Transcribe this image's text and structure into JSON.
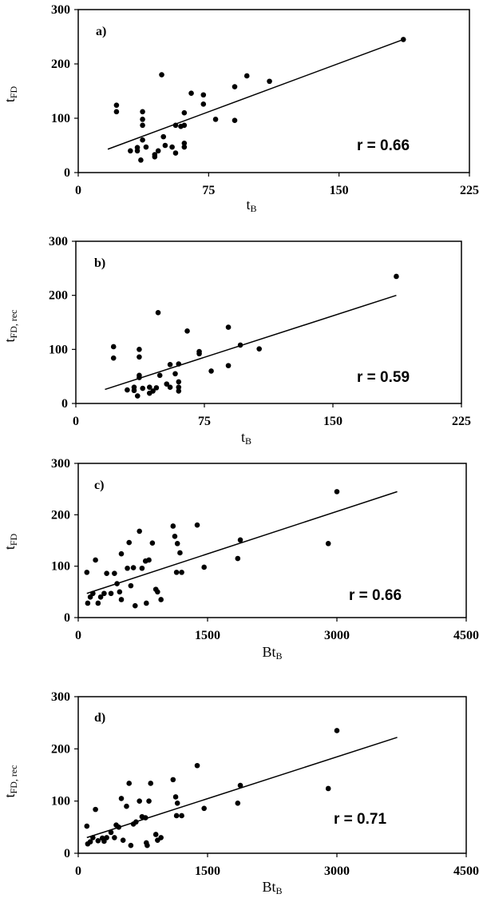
{
  "chart_data": [
    {
      "type": "scatter",
      "panel_label": "a)",
      "xlabel": "t",
      "xlabel_sub": "B",
      "ylabel": "t",
      "ylabel_sub": "FD",
      "xlim": [
        0,
        225
      ],
      "ylim": [
        0,
        300
      ],
      "xticks": [
        0,
        75,
        150,
        225
      ],
      "yticks": [
        0,
        100,
        200,
        300
      ],
      "annotation": "r = 0.66",
      "trendline": {
        "x": [
          17,
          187
        ],
        "y": [
          43,
          245
        ]
      },
      "points": [
        [
          22,
          124
        ],
        [
          22,
          112
        ],
        [
          30,
          40
        ],
        [
          34,
          46
        ],
        [
          34,
          40
        ],
        [
          36,
          23
        ],
        [
          37,
          112
        ],
        [
          37,
          98
        ],
        [
          37,
          87
        ],
        [
          37,
          60
        ],
        [
          39,
          47
        ],
        [
          44,
          33
        ],
        [
          44,
          29
        ],
        [
          46,
          40
        ],
        [
          48,
          180
        ],
        [
          49,
          66
        ],
        [
          50,
          50
        ],
        [
          54,
          47
        ],
        [
          56,
          87
        ],
        [
          56,
          36
        ],
        [
          59,
          85
        ],
        [
          61,
          87
        ],
        [
          61,
          110
        ],
        [
          61,
          54
        ],
        [
          61,
          47
        ],
        [
          65,
          146
        ],
        [
          72,
          143
        ],
        [
          72,
          126
        ],
        [
          79,
          98
        ],
        [
          90,
          158
        ],
        [
          90,
          96
        ],
        [
          97,
          178
        ],
        [
          110,
          168
        ],
        [
          187,
          245
        ]
      ]
    },
    {
      "type": "scatter",
      "panel_label": "b)",
      "xlabel": "t",
      "xlabel_sub": "B",
      "ylabel": "t",
      "ylabel_sub": "FD, rec",
      "xlim": [
        0,
        225
      ],
      "ylim": [
        0,
        300
      ],
      "xticks": [
        0,
        75,
        150,
        225
      ],
      "yticks": [
        0,
        100,
        200,
        300
      ],
      "annotation": "r = 0.59",
      "trendline": {
        "x": [
          17,
          187
        ],
        "y": [
          26,
          200
        ]
      },
      "points": [
        [
          22,
          105
        ],
        [
          22,
          84
        ],
        [
          30,
          25
        ],
        [
          34,
          30
        ],
        [
          34,
          24
        ],
        [
          36,
          14
        ],
        [
          37,
          100
        ],
        [
          37,
          86
        ],
        [
          37,
          52
        ],
        [
          37,
          48
        ],
        [
          39,
          28
        ],
        [
          43,
          30
        ],
        [
          43,
          19
        ],
        [
          45,
          23
        ],
        [
          48,
          168
        ],
        [
          47,
          29
        ],
        [
          49,
          52
        ],
        [
          53,
          36
        ],
        [
          55,
          72
        ],
        [
          55,
          30
        ],
        [
          58,
          55
        ],
        [
          60,
          73
        ],
        [
          60,
          40
        ],
        [
          60,
          30
        ],
        [
          60,
          23
        ],
        [
          65,
          134
        ],
        [
          72,
          96
        ],
        [
          72,
          92
        ],
        [
          79,
          60
        ],
        [
          89,
          141
        ],
        [
          89,
          70
        ],
        [
          96,
          108
        ],
        [
          107,
          101
        ],
        [
          187,
          235
        ]
      ]
    },
    {
      "type": "scatter",
      "panel_label": "c)",
      "xlabel": "Bt",
      "xlabel_sub": "B",
      "ylabel": "t",
      "ylabel_sub": "FD",
      "xlim": [
        0,
        4500
      ],
      "ylim": [
        0,
        300
      ],
      "xticks": [
        0,
        1500,
        3000,
        4500
      ],
      "yticks": [
        0,
        100,
        200,
        300
      ],
      "annotation": "r = 0.66",
      "trendline": {
        "x": [
          100,
          3700
        ],
        "y": [
          47,
          245
        ]
      },
      "points": [
        [
          100,
          88
        ],
        [
          110,
          28
        ],
        [
          140,
          40
        ],
        [
          170,
          47
        ],
        [
          200,
          112
        ],
        [
          230,
          28
        ],
        [
          260,
          40
        ],
        [
          300,
          47
        ],
        [
          330,
          86
        ],
        [
          380,
          47
        ],
        [
          420,
          86
        ],
        [
          450,
          66
        ],
        [
          480,
          50
        ],
        [
          500,
          124
        ],
        [
          500,
          35
        ],
        [
          570,
          96
        ],
        [
          590,
          146
        ],
        [
          610,
          62
        ],
        [
          640,
          97
        ],
        [
          660,
          23
        ],
        [
          710,
          168
        ],
        [
          740,
          96
        ],
        [
          780,
          110
        ],
        [
          790,
          28
        ],
        [
          820,
          112
        ],
        [
          860,
          145
        ],
        [
          900,
          55
        ],
        [
          920,
          50
        ],
        [
          960,
          35
        ],
        [
          1100,
          178
        ],
        [
          1120,
          158
        ],
        [
          1140,
          88
        ],
        [
          1150,
          144
        ],
        [
          1180,
          126
        ],
        [
          1200,
          88
        ],
        [
          1380,
          180
        ],
        [
          1460,
          98
        ],
        [
          1850,
          115
        ],
        [
          1880,
          151
        ],
        [
          2900,
          144
        ],
        [
          3000,
          245
        ]
      ]
    },
    {
      "type": "scatter",
      "panel_label": "d)",
      "xlabel": "Bt",
      "xlabel_sub": "B",
      "ylabel": "t",
      "ylabel_sub": "FD, rec",
      "xlim": [
        0,
        4500
      ],
      "ylim": [
        0,
        300
      ],
      "xticks": [
        0,
        1500,
        3000,
        4500
      ],
      "yticks": [
        0,
        100,
        200,
        300
      ],
      "annotation": "r = 0.71",
      "trendline": {
        "x": [
          100,
          3700
        ],
        "y": [
          30,
          222
        ]
      },
      "points": [
        [
          100,
          52
        ],
        [
          110,
          18
        ],
        [
          140,
          22
        ],
        [
          170,
          30
        ],
        [
          200,
          84
        ],
        [
          230,
          24
        ],
        [
          280,
          29
        ],
        [
          300,
          23
        ],
        [
          330,
          30
        ],
        [
          380,
          40
        ],
        [
          420,
          30
        ],
        [
          440,
          54
        ],
        [
          470,
          50
        ],
        [
          500,
          105
        ],
        [
          520,
          25
        ],
        [
          560,
          90
        ],
        [
          590,
          134
        ],
        [
          610,
          15
        ],
        [
          640,
          56
        ],
        [
          670,
          60
        ],
        [
          710,
          100
        ],
        [
          740,
          70
        ],
        [
          780,
          68
        ],
        [
          790,
          20
        ],
        [
          800,
          15
        ],
        [
          820,
          100
        ],
        [
          840,
          134
        ],
        [
          900,
          36
        ],
        [
          920,
          25
        ],
        [
          960,
          30
        ],
        [
          1100,
          141
        ],
        [
          1130,
          108
        ],
        [
          1140,
          72
        ],
        [
          1150,
          96
        ],
        [
          1200,
          72
        ],
        [
          1380,
          168
        ],
        [
          1460,
          86
        ],
        [
          1850,
          96
        ],
        [
          1880,
          130
        ],
        [
          2900,
          124
        ],
        [
          3000,
          235
        ]
      ]
    }
  ]
}
